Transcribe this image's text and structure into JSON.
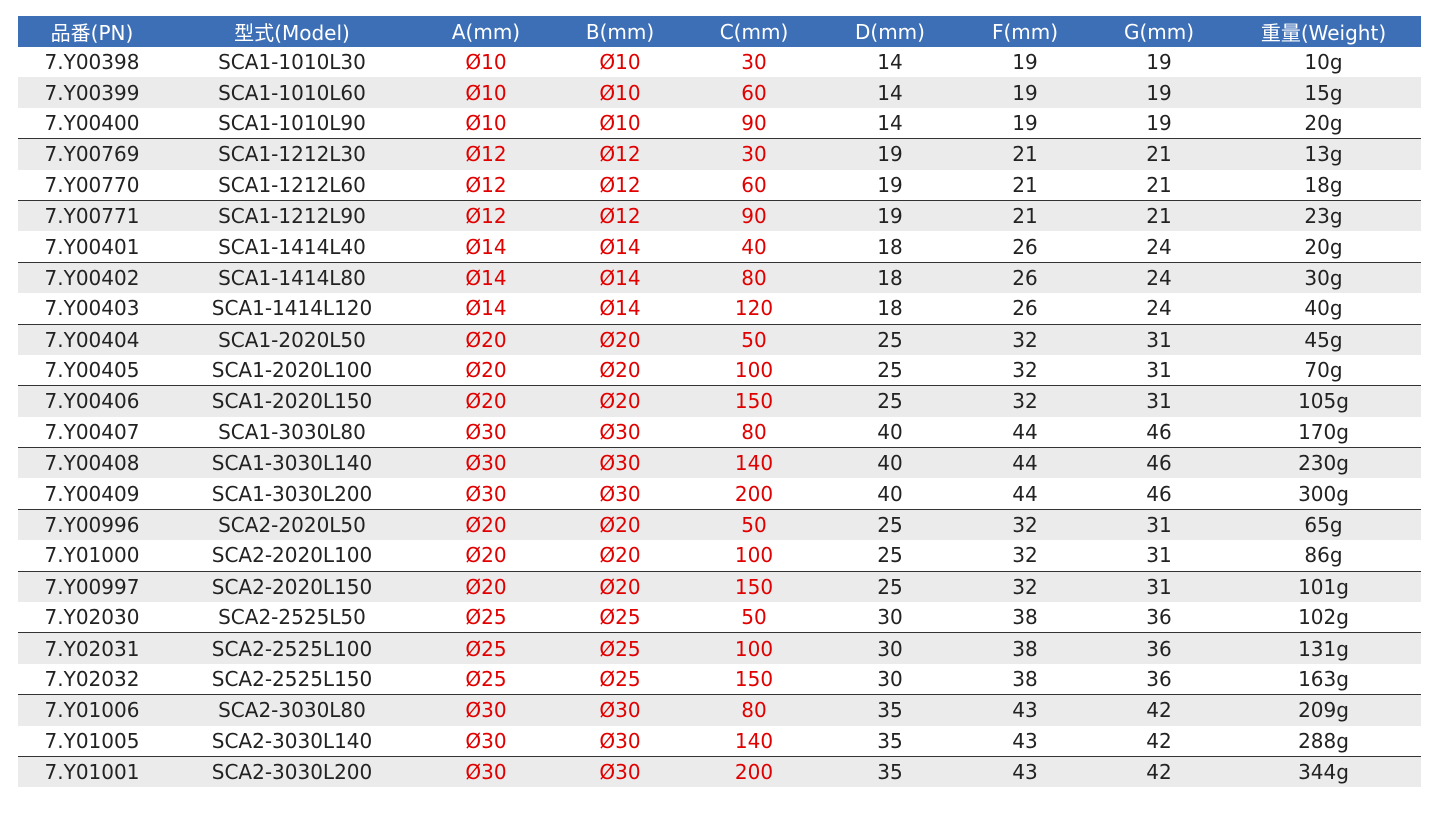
{
  "table": {
    "header": [
      "品番(PN)",
      "型式(Model)",
      "A(mm)",
      "B(mm)",
      "C(mm)",
      "D(mm)",
      "F(mm)",
      "G(mm)",
      "重量(Weight)"
    ],
    "rows": [
      [
        "7.Y00398",
        "SCA1-1010L30",
        "Ø10",
        "Ø10",
        "30",
        "14",
        "19",
        "19",
        "10g"
      ],
      [
        "7.Y00399",
        "SCA1-1010L60",
        "Ø10",
        "Ø10",
        "60",
        "14",
        "19",
        "19",
        "15g"
      ],
      [
        "7.Y00400",
        "SCA1-1010L90",
        "Ø10",
        "Ø10",
        "90",
        "14",
        "19",
        "19",
        "20g"
      ],
      [
        "7.Y00769",
        "SCA1-1212L30",
        "Ø12",
        "Ø12",
        "30",
        "19",
        "21",
        "21",
        "13g"
      ],
      [
        "7.Y00770",
        "SCA1-1212L60",
        "Ø12",
        "Ø12",
        "60",
        "19",
        "21",
        "21",
        "18g"
      ],
      [
        "7.Y00771",
        "SCA1-1212L90",
        "Ø12",
        "Ø12",
        "90",
        "19",
        "21",
        "21",
        "23g"
      ],
      [
        "7.Y00401",
        "SCA1-1414L40",
        "Ø14",
        "Ø14",
        "40",
        "18",
        "26",
        "24",
        "20g"
      ],
      [
        "7.Y00402",
        "SCA1-1414L80",
        "Ø14",
        "Ø14",
        "80",
        "18",
        "26",
        "24",
        "30g"
      ],
      [
        "7.Y00403",
        "SCA1-1414L120",
        "Ø14",
        "Ø14",
        "120",
        "18",
        "26",
        "24",
        "40g"
      ],
      [
        "7.Y00404",
        "SCA1-2020L50",
        "Ø20",
        "Ø20",
        "50",
        "25",
        "32",
        "31",
        "45g"
      ],
      [
        "7.Y00405",
        "SCA1-2020L100",
        "Ø20",
        "Ø20",
        "100",
        "25",
        "32",
        "31",
        "70g"
      ],
      [
        "7.Y00406",
        "SCA1-2020L150",
        "Ø20",
        "Ø20",
        "150",
        "25",
        "32",
        "31",
        "105g"
      ],
      [
        "7.Y00407",
        "SCA1-3030L80",
        "Ø30",
        "Ø30",
        "80",
        "40",
        "44",
        "46",
        "170g"
      ],
      [
        "7.Y00408",
        "SCA1-3030L140",
        "Ø30",
        "Ø30",
        "140",
        "40",
        "44",
        "46",
        "230g"
      ],
      [
        "7.Y00409",
        "SCA1-3030L200",
        "Ø30",
        "Ø30",
        "200",
        "40",
        "44",
        "46",
        "300g"
      ],
      [
        "7.Y00996",
        "SCA2-2020L50",
        "Ø20",
        "Ø20",
        "50",
        "25",
        "32",
        "31",
        "65g"
      ],
      [
        "7.Y01000",
        "SCA2-2020L100",
        "Ø20",
        "Ø20",
        "100",
        "25",
        "32",
        "31",
        "86g"
      ],
      [
        "7.Y00997",
        "SCA2-2020L150",
        "Ø20",
        "Ø20",
        "150",
        "25",
        "32",
        "31",
        "101g"
      ],
      [
        "7.Y02030",
        "SCA2-2525L50",
        "Ø25",
        "Ø25",
        "50",
        "30",
        "38",
        "36",
        "102g"
      ],
      [
        "7.Y02031",
        "SCA2-2525L100",
        "Ø25",
        "Ø25",
        "100",
        "30",
        "38",
        "36",
        "131g"
      ],
      [
        "7.Y02032",
        "SCA2-2525L150",
        "Ø25",
        "Ø25",
        "150",
        "30",
        "38",
        "36",
        "163g"
      ],
      [
        "7.Y01006",
        "SCA2-3030L80",
        "Ø30",
        "Ø30",
        "80",
        "35",
        "43",
        "42",
        "209g"
      ],
      [
        "7.Y01005",
        "SCA2-3030L140",
        "Ø30",
        "Ø30",
        "140",
        "35",
        "43",
        "42",
        "288g"
      ],
      [
        "7.Y01001",
        "SCA2-3030L200",
        "Ø30",
        "Ø30",
        "200",
        "35",
        "43",
        "42",
        "344g"
      ]
    ]
  }
}
